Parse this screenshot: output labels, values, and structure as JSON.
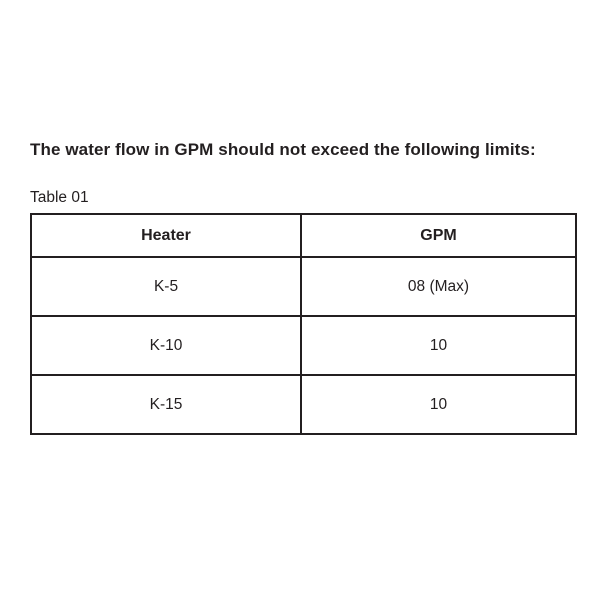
{
  "page": {
    "background_color": "#ffffff",
    "text_color": "#231f20",
    "border_color": "#231f20"
  },
  "document": {
    "heading": "The water flow in GPM should not exceed the following limits:",
    "table_label": "Table 01",
    "table": {
      "columns": [
        "Heater",
        "GPM"
      ],
      "rows": [
        {
          "heater": "K-5",
          "gpm": "08 (Max)"
        },
        {
          "heater": "K-10",
          "gpm": "10"
        },
        {
          "heater": "K-15",
          "gpm": "10"
        }
      ]
    }
  }
}
